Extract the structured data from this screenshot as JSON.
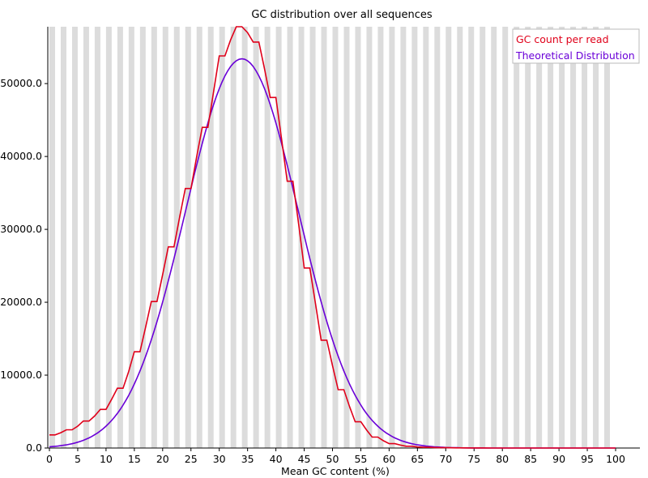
{
  "chart_data": {
    "type": "line",
    "title": "GC distribution over all sequences",
    "xlabel": "Mean GC content (%)",
    "ylabel": "",
    "xlim": [
      0,
      100
    ],
    "ylim": [
      0,
      57800
    ],
    "x_ticks": [
      0,
      5,
      10,
      15,
      20,
      25,
      30,
      35,
      40,
      45,
      50,
      55,
      60,
      65,
      70,
      75,
      80,
      85,
      90,
      95,
      100
    ],
    "y_ticks": [
      0,
      10000,
      20000,
      30000,
      40000,
      50000
    ],
    "y_tick_labels": [
      "0.0",
      "10000.0",
      "20000.0",
      "30000.0",
      "40000.0",
      "50000.0"
    ],
    "background": "alternating vertical grey bands per 1% GC",
    "legend_position": "top-right",
    "series": [
      {
        "name": "GC count per read",
        "color": "#e0001a",
        "x": [
          0,
          1,
          2,
          3,
          4,
          5,
          6,
          7,
          8,
          9,
          10,
          11,
          12,
          13,
          14,
          15,
          16,
          17,
          18,
          19,
          20,
          21,
          22,
          23,
          24,
          25,
          26,
          27,
          28,
          29,
          30,
          31,
          32,
          33,
          34,
          35,
          36,
          37,
          38,
          39,
          40,
          41,
          42,
          43,
          44,
          45,
          46,
          47,
          48,
          49,
          50,
          51,
          52,
          53,
          54,
          55,
          56,
          57,
          58,
          59,
          60,
          61,
          62,
          63,
          64,
          65,
          66,
          67,
          68,
          69,
          70,
          71,
          72,
          73,
          74,
          75,
          76,
          77,
          78,
          79,
          80,
          81,
          82,
          83,
          84,
          85,
          86,
          87,
          88,
          89,
          90,
          91,
          92,
          93,
          94,
          95,
          96,
          97,
          98,
          99,
          100
        ],
        "values": [
          1800,
          1800,
          2100,
          2500,
          2500,
          3000,
          3700,
          3700,
          4400,
          5300,
          5300,
          6700,
          8200,
          8200,
          10500,
          13200,
          13200,
          16600,
          20100,
          20100,
          23800,
          27600,
          27600,
          31700,
          35600,
          35600,
          39900,
          44000,
          44000,
          48900,
          53800,
          53800,
          56000,
          57800,
          57800,
          57000,
          55700,
          55700,
          52000,
          48100,
          48100,
          42400,
          36600,
          36600,
          30800,
          24700,
          24700,
          19800,
          14800,
          14800,
          11300,
          8000,
          8000,
          5700,
          3600,
          3600,
          2500,
          1500,
          1500,
          1000,
          600,
          600,
          400,
          250,
          250,
          150,
          100,
          100,
          70,
          50,
          50,
          30,
          20,
          20,
          15,
          10,
          10,
          8,
          5,
          5,
          3,
          2,
          2,
          1,
          1,
          1,
          0,
          0,
          0,
          0,
          0,
          0,
          0,
          0,
          0,
          0,
          0,
          0,
          0,
          0,
          0
        ]
      },
      {
        "name": "Theoretical Distribution",
        "color": "#6a00d8",
        "mean": 34.0,
        "peak": 53400,
        "sd": 10.0
      }
    ]
  }
}
